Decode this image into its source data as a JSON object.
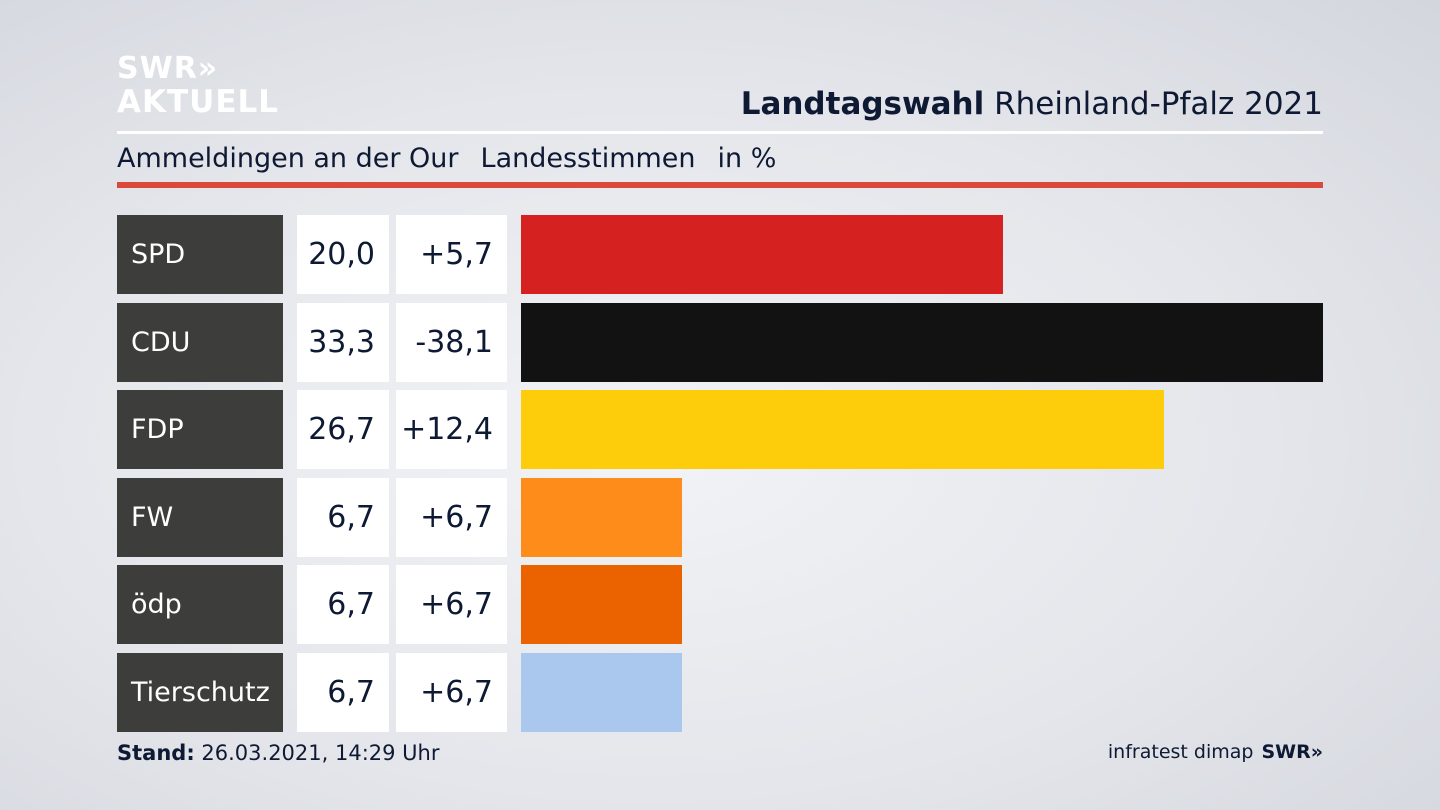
{
  "logo": {
    "line1": "SWR»",
    "line2": "AKTUELL"
  },
  "header": {
    "title_bold": "Landtagswahl",
    "title_rest": " Rheinland-Pfalz 2021",
    "subtitle_region": "Ammeldingen an der Our",
    "subtitle_measure": "Landesstimmen",
    "subtitle_unit": "in %"
  },
  "chart_data": {
    "type": "bar",
    "orientation": "horizontal",
    "categories": [
      "SPD",
      "CDU",
      "FDP",
      "FW",
      "ödp",
      "Tierschutz"
    ],
    "values": [
      20.0,
      33.3,
      26.7,
      6.7,
      6.7,
      6.7
    ],
    "value_labels": [
      "20,0",
      "33,3",
      "26,7",
      "6,7",
      "6,7",
      "6,7"
    ],
    "changes": [
      5.7,
      -38.1,
      12.4,
      6.7,
      6.7,
      6.7
    ],
    "change_labels": [
      "+5,7",
      "-38,1",
      "+12,4",
      "+6,7",
      "+6,7",
      "+6,7"
    ],
    "colors": [
      "#d52120",
      "#121212",
      "#fdcc0a",
      "#fd8c1a",
      "#ea6300",
      "#aac7ee"
    ],
    "xlim": [
      0,
      33.3
    ]
  },
  "footer": {
    "stand_label": "Stand:",
    "stand_value": " 26.03.2021, 14:29 Uhr",
    "source": "infratest dimap",
    "brand": "SWR»"
  }
}
